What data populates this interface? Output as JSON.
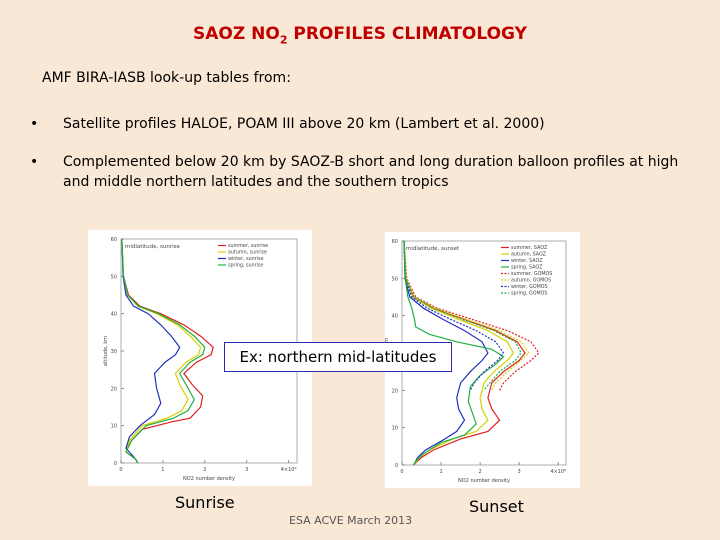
{
  "title": {
    "main": "SAOZ NO",
    "sub": "2",
    "rest": " PROFILES CLIMATOLOGY"
  },
  "intro": "AMF BIRA-IASB look-up tables from:",
  "bullets": [
    {
      "marker": "•",
      "text": "Satellite profiles HALOE, POAM III  above 20 km (Lambert et al. 2000)"
    },
    {
      "marker": "•",
      "text": "Complemented below 20 km by SAOZ-B short and long duration balloon profiles at high and middle northern latitudes and the southern tropics"
    }
  ],
  "chart_data": [
    {
      "type": "line",
      "title": "midlatitude, sunrise",
      "ylabel": "altitude, km",
      "xlabel": "NO2 number density",
      "xticks": [
        "0",
        "1",
        "2",
        "3",
        "4×10⁹"
      ],
      "yticks": [
        "0",
        "10",
        "20",
        "30",
        "40",
        "50",
        "60"
      ],
      "xlim": [
        0,
        4.2
      ],
      "ylim": [
        0,
        60
      ],
      "series": [
        {
          "name": "summer, sunrise",
          "color": "#e02020",
          "points": [
            [
              0.02,
              60
            ],
            [
              0.06,
              50
            ],
            [
              0.18,
              45
            ],
            [
              0.45,
              42
            ],
            [
              0.95,
              40
            ],
            [
              1.5,
              37
            ],
            [
              1.9,
              34
            ],
            [
              2.2,
              31
            ],
            [
              2.15,
              29
            ],
            [
              1.8,
              27
            ],
            [
              1.5,
              24
            ],
            [
              1.7,
              21
            ],
            [
              1.95,
              18
            ],
            [
              1.9,
              15
            ],
            [
              1.65,
              12
            ],
            [
              1.2,
              11
            ],
            [
              0.5,
              9
            ],
            [
              0.25,
              6
            ],
            [
              0.12,
              3
            ],
            [
              0.35,
              1
            ],
            [
              0.4,
              0
            ]
          ]
        },
        {
          "name": "autumn, sunrise",
          "color": "#d8d000",
          "points": [
            [
              0.02,
              60
            ],
            [
              0.06,
              50
            ],
            [
              0.16,
              45
            ],
            [
              0.4,
              42
            ],
            [
              0.85,
              40
            ],
            [
              1.35,
              37
            ],
            [
              1.65,
              34
            ],
            [
              1.9,
              31
            ],
            [
              1.85,
              29
            ],
            [
              1.55,
              27
            ],
            [
              1.3,
              24
            ],
            [
              1.4,
              21
            ],
            [
              1.6,
              17
            ],
            [
              1.45,
              14
            ],
            [
              1.1,
              12
            ],
            [
              0.5,
              10
            ],
            [
              0.2,
              6
            ],
            [
              0.12,
              3
            ],
            [
              0.35,
              1
            ],
            [
              0.4,
              0
            ]
          ]
        },
        {
          "name": "winter, sunrise",
          "color": "#2030c0",
          "points": [
            [
              0.02,
              60
            ],
            [
              0.05,
              50
            ],
            [
              0.12,
              45
            ],
            [
              0.3,
              42
            ],
            [
              0.65,
              40
            ],
            [
              0.95,
              37
            ],
            [
              1.2,
              34
            ],
            [
              1.4,
              31
            ],
            [
              1.3,
              29
            ],
            [
              1.05,
              27
            ],
            [
              0.8,
              24
            ],
            [
              0.85,
              20
            ],
            [
              0.95,
              16
            ],
            [
              0.8,
              13
            ],
            [
              0.45,
              10
            ],
            [
              0.2,
              7
            ],
            [
              0.12,
              4
            ],
            [
              0.35,
              1
            ],
            [
              0.4,
              0
            ]
          ]
        },
        {
          "name": "spring, sunrise",
          "color": "#20b040",
          "points": [
            [
              0.02,
              60
            ],
            [
              0.06,
              50
            ],
            [
              0.16,
              45
            ],
            [
              0.42,
              42
            ],
            [
              0.9,
              40
            ],
            [
              1.4,
              37
            ],
            [
              1.75,
              34
            ],
            [
              2.0,
              31
            ],
            [
              1.95,
              29
            ],
            [
              1.65,
              27
            ],
            [
              1.4,
              24
            ],
            [
              1.55,
              21
            ],
            [
              1.75,
              17
            ],
            [
              1.6,
              14
            ],
            [
              1.25,
              12
            ],
            [
              0.6,
              10
            ],
            [
              0.25,
              6
            ],
            [
              0.12,
              3
            ],
            [
              0.35,
              1
            ],
            [
              0.4,
              0
            ]
          ]
        }
      ]
    },
    {
      "type": "line",
      "title": "midlatitude, sunset",
      "ylabel": "altitude, km",
      "xlabel": "NO2 number density",
      "xticks": [
        "0",
        "1",
        "2",
        "3",
        "4×10⁹"
      ],
      "yticks": [
        "0",
        "10",
        "20",
        "30",
        "40",
        "50",
        "60"
      ],
      "xlim": [
        0,
        4.2
      ],
      "ylim": [
        0,
        60
      ],
      "series": [
        {
          "name": "summer, SAOZ",
          "color": "#e02020",
          "dash": false,
          "points": [
            [
              0.05,
              60
            ],
            [
              0.1,
              50
            ],
            [
              0.3,
              45
            ],
            [
              0.8,
              42
            ],
            [
              1.6,
              39
            ],
            [
              2.4,
              36
            ],
            [
              2.95,
              33
            ],
            [
              3.15,
              30
            ],
            [
              3.0,
              28
            ],
            [
              2.6,
              25
            ],
            [
              2.3,
              22
            ],
            [
              2.2,
              18
            ],
            [
              2.3,
              15
            ],
            [
              2.5,
              12
            ],
            [
              2.2,
              9
            ],
            [
              1.5,
              7
            ],
            [
              0.8,
              4
            ],
            [
              0.5,
              2
            ],
            [
              0.3,
              0
            ]
          ]
        },
        {
          "name": "autumn, SAOZ",
          "color": "#d8d000",
          "dash": false,
          "points": [
            [
              0.05,
              60
            ],
            [
              0.1,
              50
            ],
            [
              0.28,
              45
            ],
            [
              0.75,
              42
            ],
            [
              1.45,
              39
            ],
            [
              2.2,
              36
            ],
            [
              2.7,
              33
            ],
            [
              2.85,
              30
            ],
            [
              2.7,
              28
            ],
            [
              2.35,
              25
            ],
            [
              2.1,
              22
            ],
            [
              2.0,
              18
            ],
            [
              2.05,
              15
            ],
            [
              2.2,
              12
            ],
            [
              1.9,
              9
            ],
            [
              1.3,
              7
            ],
            [
              0.7,
              4
            ],
            [
              0.45,
              2
            ],
            [
              0.3,
              0
            ]
          ]
        },
        {
          "name": "winter, SAOZ",
          "color": "#2030c0",
          "dash": false,
          "points": [
            [
              0.05,
              60
            ],
            [
              0.08,
              50
            ],
            [
              0.2,
              45
            ],
            [
              0.55,
              42
            ],
            [
              1.05,
              39
            ],
            [
              1.6,
              36
            ],
            [
              2.05,
              33
            ],
            [
              2.2,
              30
            ],
            [
              2.05,
              28
            ],
            [
              1.75,
              25
            ],
            [
              1.5,
              22
            ],
            [
              1.4,
              18
            ],
            [
              1.45,
              15
            ],
            [
              1.6,
              12
            ],
            [
              1.4,
              9
            ],
            [
              1.1,
              7
            ],
            [
              0.6,
              4
            ],
            [
              0.4,
              2
            ],
            [
              0.3,
              0
            ]
          ]
        },
        {
          "name": "spring, SAOZ",
          "color": "#20b040",
          "dash": false,
          "points": [
            [
              0.05,
              60
            ],
            [
              0.08,
              50
            ],
            [
              0.15,
              45
            ],
            [
              0.25,
              42
            ],
            [
              0.32,
              39
            ],
            [
              0.35,
              37
            ],
            [
              0.7,
              35
            ],
            [
              1.4,
              33
            ],
            [
              2.3,
              31
            ],
            [
              2.6,
              29
            ],
            [
              2.4,
              27
            ],
            [
              2.0,
              24
            ],
            [
              1.75,
              21
            ],
            [
              1.7,
              17
            ],
            [
              1.8,
              14
            ],
            [
              1.9,
              11
            ],
            [
              1.6,
              8
            ],
            [
              1.0,
              6
            ],
            [
              0.55,
              3
            ],
            [
              0.35,
              1
            ],
            [
              0.3,
              0
            ]
          ]
        },
        {
          "name": "summer, GOMOS",
          "color": "#e02020",
          "dash": true,
          "points": [
            [
              0.05,
              60
            ],
            [
              0.12,
              50
            ],
            [
              0.35,
              45
            ],
            [
              0.9,
              42
            ],
            [
              1.8,
              39
            ],
            [
              2.7,
              36
            ],
            [
              3.3,
              33
            ],
            [
              3.5,
              30
            ],
            [
              3.3,
              28
            ],
            [
              2.9,
              25
            ],
            [
              2.6,
              22
            ],
            [
              2.5,
              20
            ]
          ]
        },
        {
          "name": "autumn, GOMOS",
          "color": "#d8d000",
          "dash": true,
          "points": [
            [
              0.05,
              60
            ],
            [
              0.11,
              50
            ],
            [
              0.32,
              45
            ],
            [
              0.85,
              42
            ],
            [
              1.65,
              39
            ],
            [
              2.5,
              36
            ],
            [
              3.05,
              33
            ],
            [
              3.25,
              30
            ],
            [
              3.05,
              28
            ],
            [
              2.7,
              25
            ],
            [
              2.4,
              22
            ],
            [
              2.3,
              20
            ]
          ]
        },
        {
          "name": "winter, GOMOS",
          "color": "#2030c0",
          "dash": true,
          "points": [
            [
              0.05,
              60
            ],
            [
              0.09,
              50
            ],
            [
              0.25,
              45
            ],
            [
              0.65,
              42
            ],
            [
              1.25,
              39
            ],
            [
              1.9,
              36
            ],
            [
              2.4,
              33
            ],
            [
              2.6,
              30
            ],
            [
              2.45,
              28
            ],
            [
              2.1,
              25
            ],
            [
              1.85,
              22
            ],
            [
              1.75,
              20
            ]
          ]
        },
        {
          "name": "spring, GOMOS",
          "color": "#20b040",
          "dash": true,
          "points": [
            [
              0.05,
              60
            ],
            [
              0.1,
              50
            ],
            [
              0.3,
              45
            ],
            [
              0.8,
              42
            ],
            [
              1.55,
              39
            ],
            [
              2.35,
              36
            ],
            [
              2.9,
              33
            ],
            [
              3.05,
              30
            ],
            [
              2.9,
              28
            ],
            [
              2.5,
              25
            ],
            [
              2.25,
              22
            ],
            [
              2.1,
              20
            ]
          ]
        }
      ]
    }
  ],
  "callout": "Ex: northern mid-latitudes",
  "labels": {
    "sunrise": "Sunrise",
    "sunset": "Sunset"
  },
  "footer": "ESA ACVE March 2013"
}
